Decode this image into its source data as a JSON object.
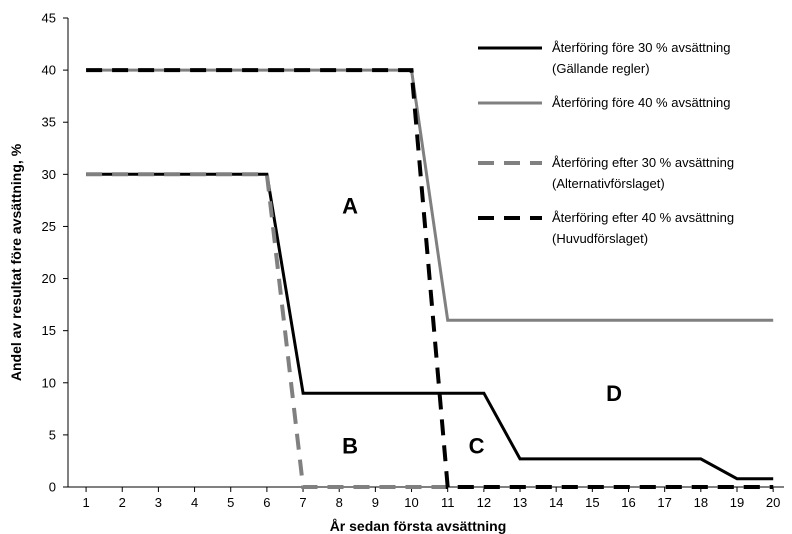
{
  "chart_data": {
    "type": "line",
    "title": "",
    "xlabel": "År sedan första avsättning",
    "ylabel": "Andel av resultat före avsättning, %",
    "xlim": [
      0.5,
      20.3
    ],
    "ylim": [
      0,
      45
    ],
    "x_ticks": [
      1,
      2,
      3,
      4,
      5,
      6,
      7,
      8,
      9,
      10,
      11,
      12,
      13,
      14,
      15,
      16,
      17,
      18,
      19,
      20
    ],
    "y_ticks": [
      0,
      5,
      10,
      15,
      20,
      25,
      30,
      35,
      40,
      45
    ],
    "grid": false,
    "legend_position": "top-right",
    "series": [
      {
        "name_lines": [
          "Återföring före 30 % avsättning",
          "(Gällande regler)"
        ],
        "color": "#000000",
        "style": "solid",
        "points": [
          [
            1,
            30
          ],
          [
            6,
            30
          ],
          [
            7,
            9
          ],
          [
            12,
            9
          ],
          [
            13,
            2.7
          ],
          [
            18,
            2.7
          ],
          [
            19,
            0.8
          ],
          [
            20,
            0.8
          ]
        ]
      },
      {
        "name_lines": [
          "Återföring före 40 % avsättning"
        ],
        "color": "#808080",
        "style": "solid",
        "points": [
          [
            1,
            40
          ],
          [
            10,
            40
          ],
          [
            11,
            16
          ],
          [
            20,
            16
          ]
        ]
      },
      {
        "name_lines": [
          "Återföring efter 30 % avsättning",
          "(Alternativförslaget)"
        ],
        "color": "#808080",
        "style": "dashed",
        "points": [
          [
            1,
            30
          ],
          [
            6,
            30
          ],
          [
            7,
            0
          ],
          [
            20,
            0
          ]
        ]
      },
      {
        "name_lines": [
          "Återföring efter 40 % avsättning",
          "(Huvudförslaget)"
        ],
        "color": "#000000",
        "style": "dashed",
        "points": [
          [
            1,
            40
          ],
          [
            10,
            40
          ],
          [
            11,
            0
          ],
          [
            20,
            0
          ]
        ]
      }
    ],
    "annotations": [
      {
        "text": "A",
        "x": 8.3,
        "y": 27
      },
      {
        "text": "B",
        "x": 8.3,
        "y": 4
      },
      {
        "text": "C",
        "x": 11.8,
        "y": 4
      },
      {
        "text": "D",
        "x": 15.6,
        "y": 9
      }
    ]
  }
}
